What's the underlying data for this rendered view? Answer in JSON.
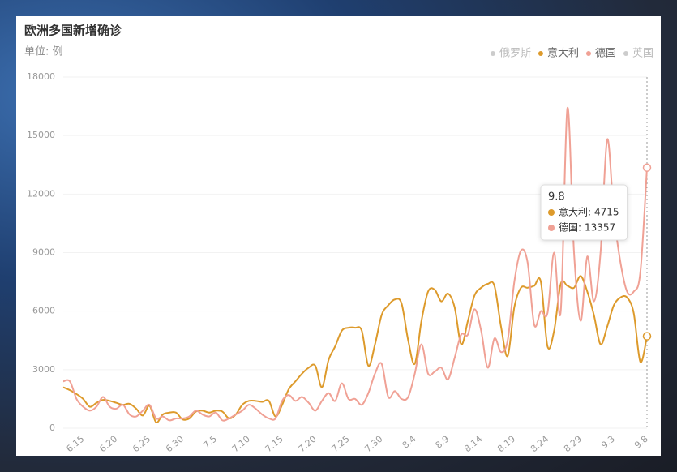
{
  "chart_data": {
    "type": "line",
    "title": "欧洲多国新增确诊",
    "y_label": "单位: 例",
    "categories": [
      null,
      null,
      null,
      "6.15",
      null,
      null,
      null,
      null,
      "6.20",
      null,
      null,
      null,
      null,
      "6.25",
      null,
      null,
      null,
      null,
      "6.30",
      null,
      null,
      null,
      null,
      "7.5",
      null,
      null,
      null,
      null,
      "7.10",
      null,
      null,
      null,
      null,
      "7.15",
      null,
      null,
      null,
      null,
      "7.20",
      null,
      null,
      null,
      null,
      "7.25",
      null,
      null,
      null,
      null,
      "7.30",
      null,
      null,
      null,
      null,
      "8.4",
      null,
      null,
      null,
      null,
      "8.9",
      null,
      null,
      null,
      null,
      "8.14",
      null,
      null,
      null,
      null,
      "8.19",
      null,
      null,
      null,
      null,
      "8.24",
      null,
      null,
      null,
      null,
      "8.29",
      null,
      null,
      null,
      null,
      "9.3",
      null,
      null,
      null,
      null,
      "9.8"
    ],
    "series": [
      {
        "name": "俄罗斯",
        "color": "#cccccc",
        "visible": false
      },
      {
        "name": "意大利",
        "color": "#dd9a2b",
        "visible": true,
        "values": [
          2100,
          1950,
          1750,
          1500,
          1100,
          1300,
          1450,
          1400,
          1300,
          1200,
          1250,
          1000,
          650,
          1150,
          300,
          700,
          800,
          800,
          450,
          500,
          850,
          900,
          800,
          900,
          850,
          500,
          700,
          1200,
          1400,
          1400,
          1350,
          1400,
          600,
          1200,
          2000,
          2400,
          2800,
          3100,
          3200,
          2100,
          3500,
          4200,
          5000,
          5150,
          5150,
          5000,
          3200,
          4300,
          5800,
          6300,
          6600,
          6400,
          4500,
          3300,
          5500,
          7000,
          7100,
          6500,
          6900,
          6200,
          4300,
          5500,
          6800,
          7200,
          7400,
          7300,
          5200,
          3700,
          6200,
          7200,
          7200,
          7300,
          7500,
          4200,
          5000,
          7400,
          7300,
          7200,
          7800,
          7000,
          5800,
          4300,
          5200,
          6300,
          6700,
          6700,
          5900,
          3400,
          4715
        ]
      },
      {
        "name": "德国",
        "color": "#f0a195",
        "visible": true,
        "values": [
          2400,
          2400,
          1500,
          1100,
          900,
          1100,
          1600,
          1100,
          1000,
          1200,
          700,
          600,
          900,
          1200,
          500,
          600,
          400,
          500,
          500,
          600,
          900,
          700,
          600,
          800,
          400,
          500,
          700,
          900,
          1200,
          1000,
          700,
          500,
          500,
          1400,
          1700,
          1400,
          1600,
          1300,
          900,
          1400,
          1800,
          1400,
          2300,
          1500,
          1500,
          1200,
          1800,
          2800,
          3300,
          1600,
          1900,
          1500,
          1600,
          2800,
          4300,
          2800,
          2900,
          3100,
          2500,
          3600,
          4800,
          4800,
          6100,
          5000,
          3100,
          4600,
          3900,
          4500,
          7500,
          9100,
          8500,
          5300,
          6000,
          5900,
          9000,
          6000,
          16400,
          9000,
          5500,
          8800,
          6500,
          9000,
          14800,
          11000,
          8500,
          7000,
          7000,
          8000,
          13357
        ]
      },
      {
        "name": "英国",
        "color": "#cccccc",
        "visible": false
      }
    ],
    "ylim": [
      0,
      18000
    ],
    "yticks": [
      0,
      3000,
      6000,
      9000,
      12000,
      15000,
      18000
    ],
    "grid": true,
    "legend": "top-right",
    "tooltip_index": 88
  }
}
